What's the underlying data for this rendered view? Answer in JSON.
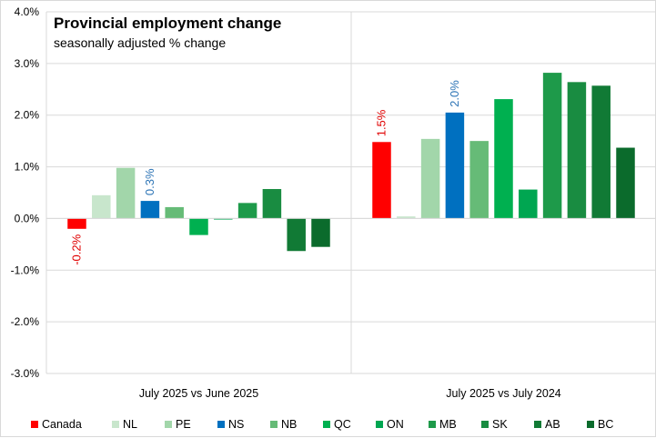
{
  "chart_data": {
    "type": "bar",
    "title": "Provincial employment change",
    "subtitle": "seasonally adjusted % change",
    "ylim": [
      -3.0,
      4.0
    ],
    "yticks": [
      -3.0,
      -2.0,
      -1.0,
      0.0,
      1.0,
      2.0,
      3.0,
      4.0
    ],
    "ytick_labels": [
      "-3.0%",
      "-2.0%",
      "-1.0%",
      "0.0%",
      "1.0%",
      "2.0%",
      "3.0%",
      "4.0%"
    ],
    "groups": [
      "July 2025 vs June 2025",
      "July 2025 vs July 2024"
    ],
    "series": [
      {
        "name": "Canada",
        "color": "#ff0000",
        "values": [
          -0.2,
          1.48
        ]
      },
      {
        "name": "NL",
        "color": "#c8e6cc",
        "values": [
          0.45,
          0.04
        ]
      },
      {
        "name": "PE",
        "color": "#a2d6aa",
        "values": [
          0.98,
          1.54
        ]
      },
      {
        "name": "NS",
        "color": "#0070c0",
        "values": [
          0.34,
          2.05
        ]
      },
      {
        "name": "NB",
        "color": "#66bb77",
        "values": [
          0.22,
          1.5
        ]
      },
      {
        "name": "QC",
        "color": "#00b050",
        "values": [
          -0.32,
          2.31
        ]
      },
      {
        "name": "ON",
        "color": "#00a651",
        "values": [
          -0.02,
          0.56
        ]
      },
      {
        "name": "MB",
        "color": "#1e9a4a",
        "values": [
          0.3,
          2.82
        ]
      },
      {
        "name": "SK",
        "color": "#198c41",
        "values": [
          0.57,
          2.64
        ]
      },
      {
        "name": "AB",
        "color": "#117a35",
        "values": [
          -0.63,
          2.57
        ]
      },
      {
        "name": "BC",
        "color": "#0b6b2c",
        "values": [
          -0.55,
          1.37
        ]
      }
    ],
    "data_labels": [
      {
        "series": "Canada",
        "group": 0,
        "text": "-0.2%",
        "color": "#e00000"
      },
      {
        "series": "NS",
        "group": 0,
        "text": "0.3%",
        "color": "#2e75b6"
      },
      {
        "series": "Canada",
        "group": 1,
        "text": "1.5%",
        "color": "#e00000"
      },
      {
        "series": "NS",
        "group": 1,
        "text": "2.0%",
        "color": "#2e75b6"
      }
    ],
    "legend_position": "bottom",
    "grid": true
  }
}
